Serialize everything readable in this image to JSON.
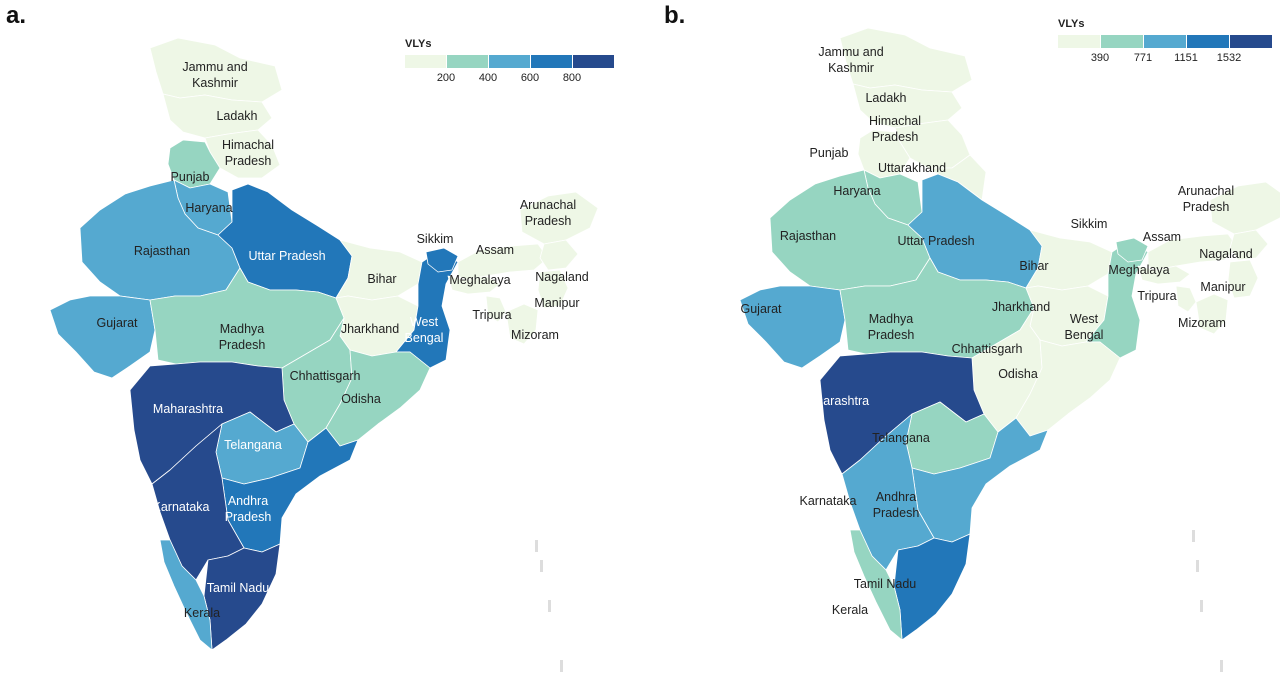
{
  "panels": [
    {
      "letter": "a.",
      "legend": {
        "title": "VLYs",
        "colors": [
          "#eef7e6",
          "#96d5c1",
          "#55a9d0",
          "#2277b9",
          "#264a8d"
        ],
        "ticks": [
          "200",
          "400",
          "600",
          "800"
        ]
      },
      "states": [
        {
          "name": "Jammu and Kashmir",
          "lines": [
            "Jammu and",
            "Kashmir"
          ],
          "color": "#eef7e6",
          "white": false
        },
        {
          "name": "Ladakh",
          "lines": [
            "Ladakh"
          ],
          "color": "#eef7e6",
          "white": false
        },
        {
          "name": "Himachal Pradesh",
          "lines": [
            "Himachal",
            "Pradesh"
          ],
          "color": "#eef7e6",
          "white": false
        },
        {
          "name": "Punjab",
          "lines": [
            "Punjab"
          ],
          "color": "#96d5c1",
          "white": false
        },
        {
          "name": "Haryana",
          "lines": [
            "Haryana"
          ],
          "color": "#55a9d0",
          "white": false
        },
        {
          "name": "Rajasthan",
          "lines": [
            "Rajasthan"
          ],
          "color": "#55a9d0",
          "white": false
        },
        {
          "name": "Uttar Pradesh",
          "lines": [
            "Uttar Pradesh"
          ],
          "color": "#2277b9",
          "white": true
        },
        {
          "name": "Gujarat",
          "lines": [
            "Gujarat"
          ],
          "color": "#55a9d0",
          "white": false
        },
        {
          "name": "Madhya Pradesh",
          "lines": [
            "Madhya",
            "Pradesh"
          ],
          "color": "#96d5c1",
          "white": false
        },
        {
          "name": "Bihar",
          "lines": [
            "Bihar"
          ],
          "color": "#eef7e6",
          "white": false
        },
        {
          "name": "Jharkhand",
          "lines": [
            "Jharkhand"
          ],
          "color": "#eef7e6",
          "white": false
        },
        {
          "name": "West Bengal",
          "lines": [
            "West",
            "Bengal"
          ],
          "color": "#2277b9",
          "white": true
        },
        {
          "name": "Chhattisgarh",
          "lines": [
            "Chhattisgarh"
          ],
          "color": "#96d5c1",
          "white": false
        },
        {
          "name": "Odisha",
          "lines": [
            "Odisha"
          ],
          "color": "#96d5c1",
          "white": false
        },
        {
          "name": "Maharashtra",
          "lines": [
            "Maharashtra"
          ],
          "color": "#264a8d",
          "white": true
        },
        {
          "name": "Telangana",
          "lines": [
            "Telangana"
          ],
          "color": "#55a9d0",
          "white": true
        },
        {
          "name": "Andhra Pradesh",
          "lines": [
            "Andhra",
            "Pradesh"
          ],
          "color": "#2277b9",
          "white": true
        },
        {
          "name": "Karnataka",
          "lines": [
            "Karnataka"
          ],
          "color": "#264a8d",
          "white": true
        },
        {
          "name": "Tamil Nadu",
          "lines": [
            "Tamil Nadu"
          ],
          "color": "#264a8d",
          "white": true
        },
        {
          "name": "Kerala",
          "lines": [
            "Kerala"
          ],
          "color": "#55a9d0",
          "white": false
        },
        {
          "name": "Sikkim",
          "lines": [
            "Sikkim"
          ],
          "color": "#2277b9",
          "white": false
        },
        {
          "name": "Assam",
          "lines": [
            "Assam"
          ],
          "color": "#eef7e6",
          "white": false
        },
        {
          "name": "Meghalaya",
          "lines": [
            "Meghalaya"
          ],
          "color": "#eef7e6",
          "white": false
        },
        {
          "name": "Arunachal Pradesh",
          "lines": [
            "Arunachal",
            "Pradesh"
          ],
          "color": "#eef7e6",
          "white": false
        },
        {
          "name": "Nagaland",
          "lines": [
            "Nagaland"
          ],
          "color": "#eef7e6",
          "white": false
        },
        {
          "name": "Manipur",
          "lines": [
            "Manipur"
          ],
          "color": "#eef7e6",
          "white": false
        },
        {
          "name": "Tripura",
          "lines": [
            "Tripura"
          ],
          "color": "#eef7e6",
          "white": false
        },
        {
          "name": "Mizoram",
          "lines": [
            "Mizoram"
          ],
          "color": "#eef7e6",
          "white": false
        }
      ]
    },
    {
      "letter": "b.",
      "legend": {
        "title": "VLYs",
        "colors": [
          "#eef7e6",
          "#96d5c1",
          "#55a9d0",
          "#2277b9",
          "#264a8d"
        ],
        "ticks": [
          "390",
          "771",
          "1151",
          "1532"
        ]
      },
      "states": [
        {
          "name": "Jammu and Kashmir",
          "lines": [
            "Jammu and",
            "Kashmir"
          ],
          "color": "#eef7e6",
          "white": false
        },
        {
          "name": "Ladakh",
          "lines": [
            "Ladakh"
          ],
          "color": "#eef7e6",
          "white": false
        },
        {
          "name": "Himachal Pradesh",
          "lines": [
            "Himachal",
            "Pradesh"
          ],
          "color": "#eef7e6",
          "white": false
        },
        {
          "name": "Punjab",
          "lines": [
            "Punjab"
          ],
          "color": "#eef7e6",
          "white": false
        },
        {
          "name": "Uttarakhand",
          "lines": [
            "Uttarakhand"
          ],
          "color": "#eef7e6",
          "white": false
        },
        {
          "name": "Haryana",
          "lines": [
            "Haryana"
          ],
          "color": "#96d5c1",
          "white": false
        },
        {
          "name": "Rajasthan",
          "lines": [
            "Rajasthan"
          ],
          "color": "#96d5c1",
          "white": false
        },
        {
          "name": "Uttar Pradesh",
          "lines": [
            "Uttar Pradesh"
          ],
          "color": "#55a9d0",
          "white": false
        },
        {
          "name": "Gujarat",
          "lines": [
            "Gujarat"
          ],
          "color": "#55a9d0",
          "white": false
        },
        {
          "name": "Madhya Pradesh",
          "lines": [
            "Madhya",
            "Pradesh"
          ],
          "color": "#96d5c1",
          "white": false
        },
        {
          "name": "Bihar",
          "lines": [
            "Bihar"
          ],
          "color": "#eef7e6",
          "white": false
        },
        {
          "name": "Jharkhand",
          "lines": [
            "Jharkhand"
          ],
          "color": "#eef7e6",
          "white": false
        },
        {
          "name": "West Bengal",
          "lines": [
            "West",
            "Bengal"
          ],
          "color": "#96d5c1",
          "white": false
        },
        {
          "name": "Chhattisgarh",
          "lines": [
            "Chhattisgarh"
          ],
          "color": "#eef7e6",
          "white": false
        },
        {
          "name": "Odisha",
          "lines": [
            "Odisha"
          ],
          "color": "#eef7e6",
          "white": false
        },
        {
          "name": "Maharashtra",
          "lines": [
            "Maharashtra"
          ],
          "color": "#264a8d",
          "white": true
        },
        {
          "name": "Telangana",
          "lines": [
            "Telangana"
          ],
          "color": "#96d5c1",
          "white": false
        },
        {
          "name": "Andhra Pradesh",
          "lines": [
            "Andhra",
            "Pradesh"
          ],
          "color": "#55a9d0",
          "white": false
        },
        {
          "name": "Karnataka",
          "lines": [
            "Karnataka"
          ],
          "color": "#55a9d0",
          "white": false
        },
        {
          "name": "Tamil Nadu",
          "lines": [
            "Tamil Nadu"
          ],
          "color": "#2277b9",
          "white": false
        },
        {
          "name": "Kerala",
          "lines": [
            "Kerala"
          ],
          "color": "#96d5c1",
          "white": false
        },
        {
          "name": "Sikkim",
          "lines": [
            "Sikkim"
          ],
          "color": "#96d5c1",
          "white": false
        },
        {
          "name": "Assam",
          "lines": [
            "Assam"
          ],
          "color": "#eef7e6",
          "white": false
        },
        {
          "name": "Meghalaya",
          "lines": [
            "Meghalaya"
          ],
          "color": "#eef7e6",
          "white": false
        },
        {
          "name": "Arunachal Pradesh",
          "lines": [
            "Arunachal",
            "Pradesh"
          ],
          "color": "#eef7e6",
          "white": false
        },
        {
          "name": "Nagaland",
          "lines": [
            "Nagaland"
          ],
          "color": "#eef7e6",
          "white": false
        },
        {
          "name": "Manipur",
          "lines": [
            "Manipur"
          ],
          "color": "#eef7e6",
          "white": false
        },
        {
          "name": "Tripura",
          "lines": [
            "Tripura"
          ],
          "color": "#eef7e6",
          "white": false
        },
        {
          "name": "Mizoram",
          "lines": [
            "Mizoram"
          ],
          "color": "#eef7e6",
          "white": false
        }
      ]
    }
  ]
}
